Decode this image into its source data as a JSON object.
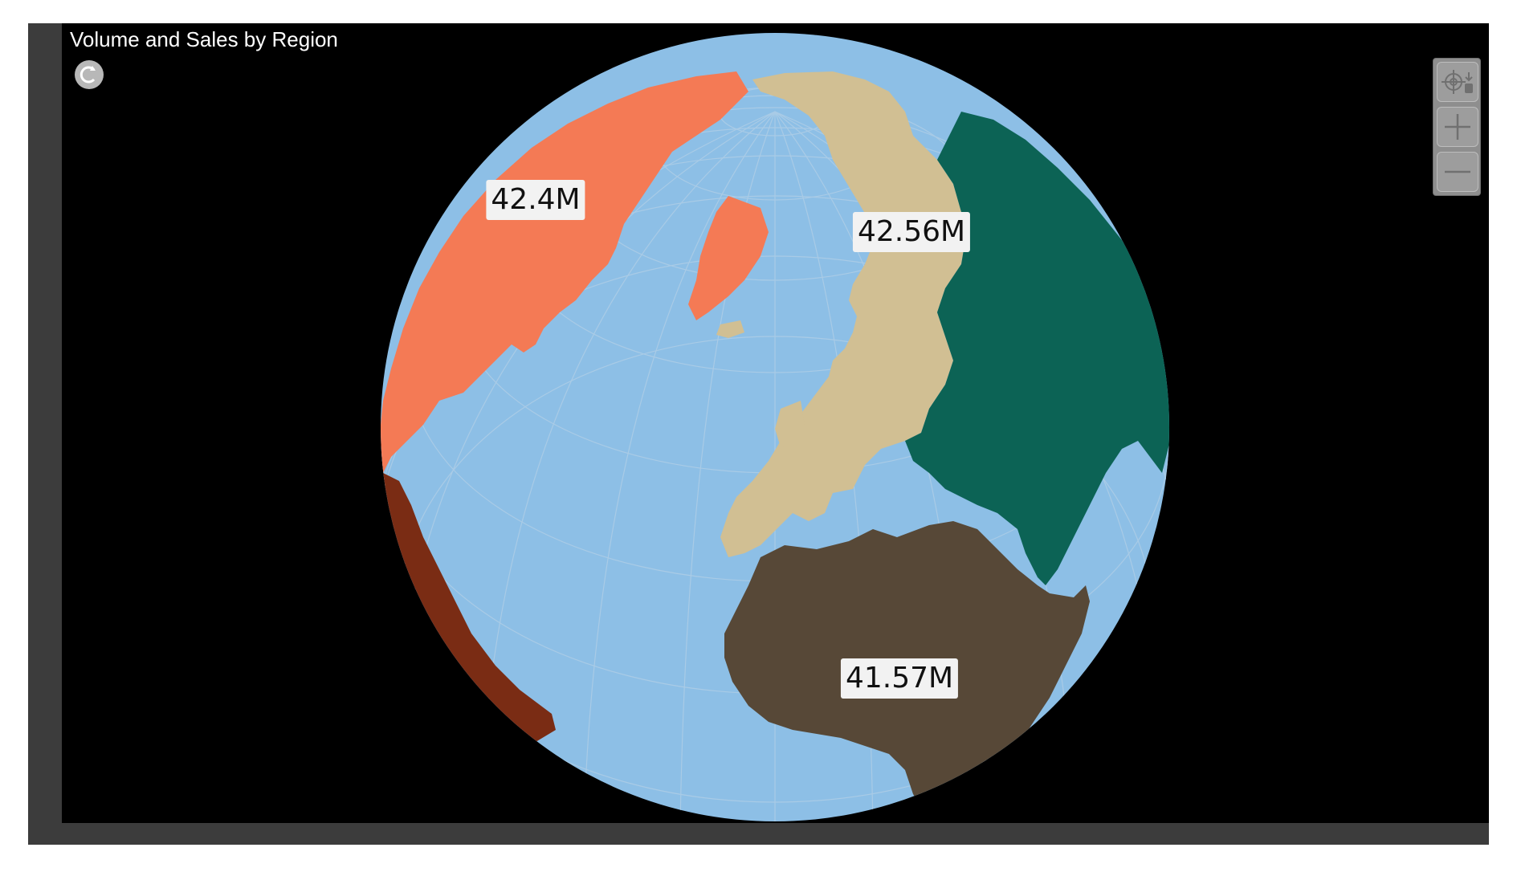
{
  "chart": {
    "title": "Volume and Sales by Region"
  },
  "map": {
    "projection": "orthographic",
    "center": "north-atlantic",
    "colors": {
      "background": "#000000",
      "ocean": "#8dbfe6",
      "graticule": "#a9cbe6"
    },
    "regions": [
      {
        "name": "north-america",
        "color": "#f47a55"
      },
      {
        "name": "europe",
        "color": "#d1bf93"
      },
      {
        "name": "asia",
        "color": "#0c6355"
      },
      {
        "name": "africa",
        "color": "#574837"
      },
      {
        "name": "south-america",
        "color": "#7a2c14"
      }
    ],
    "labels": [
      {
        "region": "north-america",
        "value": "42.4M"
      },
      {
        "region": "europe",
        "value": "42.56M"
      },
      {
        "region": "africa",
        "value": "41.57M"
      }
    ]
  },
  "controls": {
    "reset_icon": "reset-icon",
    "locate_icon": "locate-icon",
    "zoom_in_icon": "plus-icon",
    "zoom_out_icon": "minus-icon"
  }
}
